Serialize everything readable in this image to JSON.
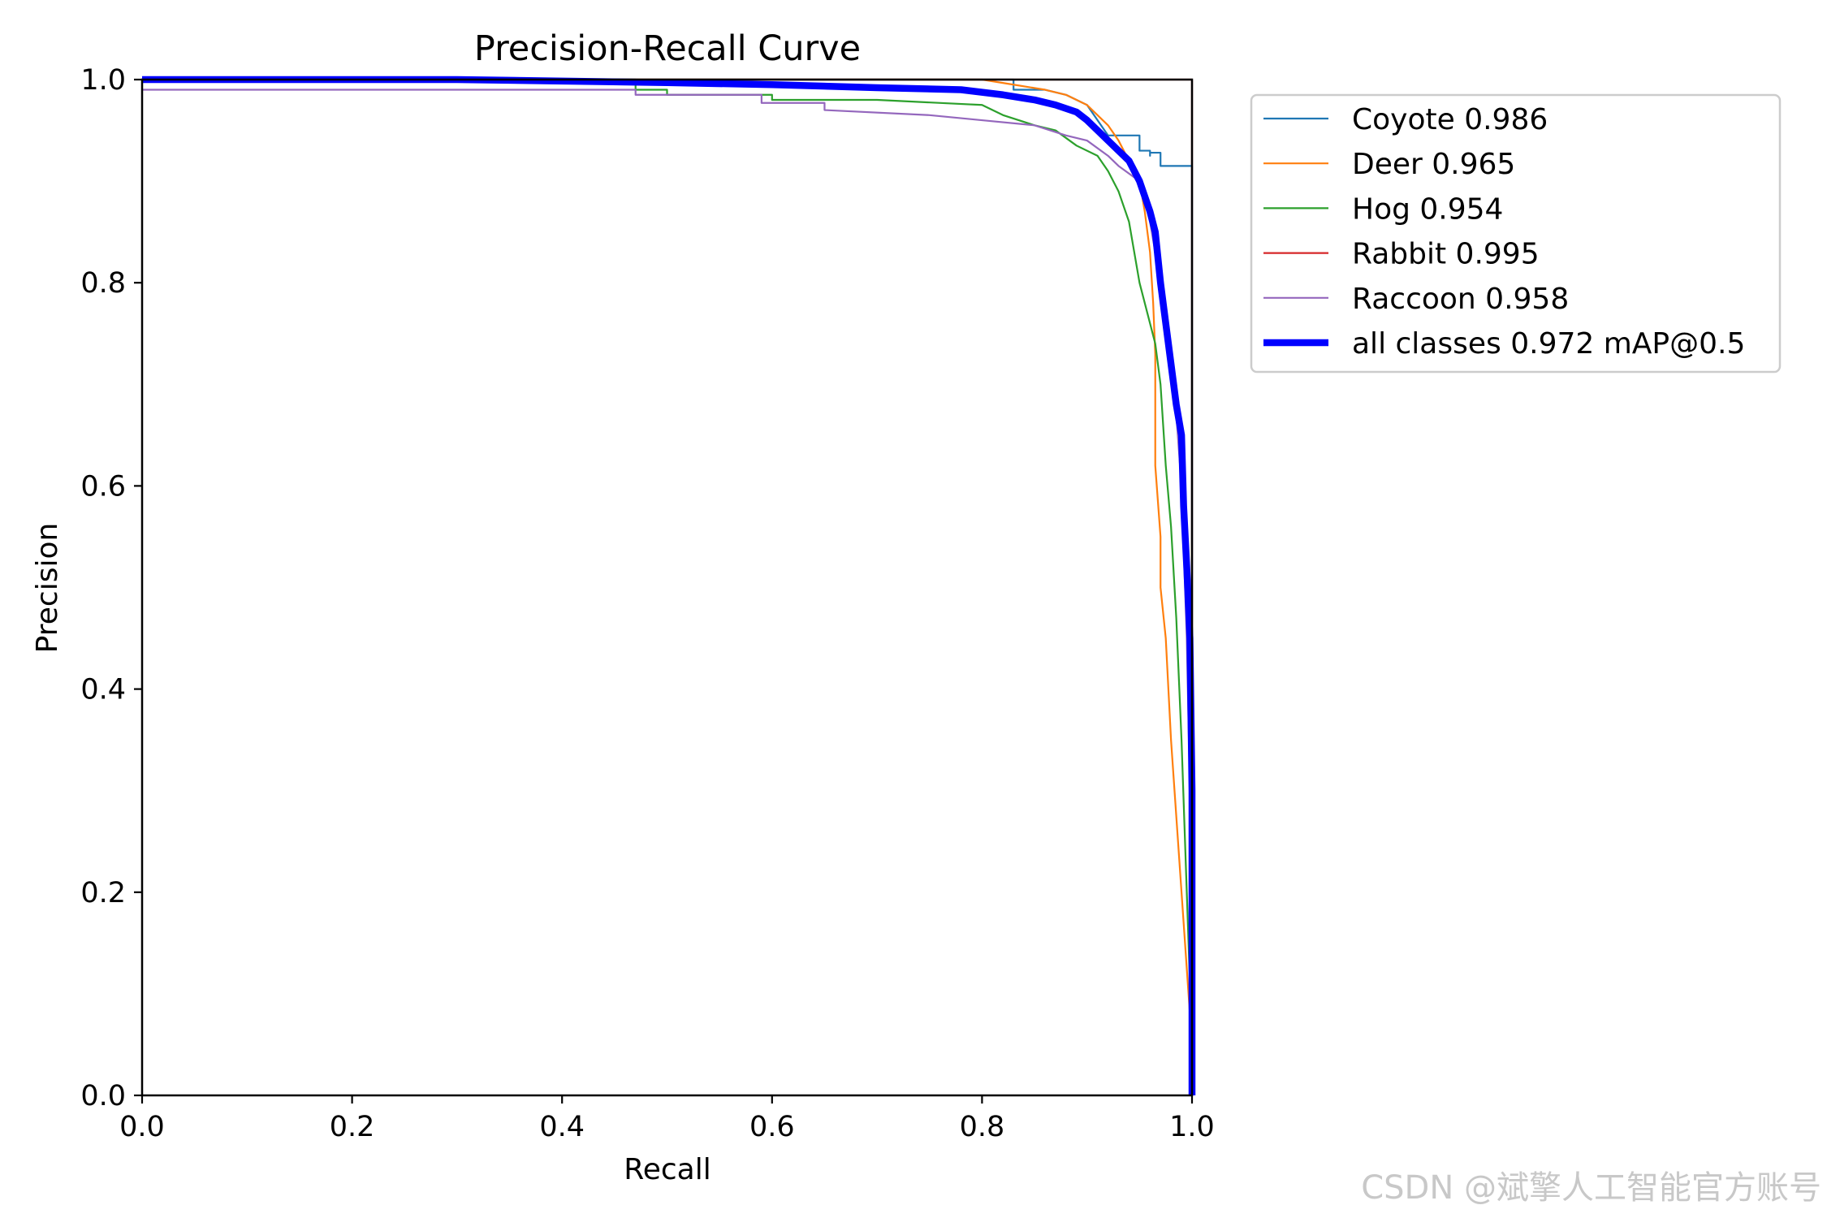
{
  "chart_data": {
    "type": "line",
    "title": "Precision-Recall Curve",
    "xlabel": "Recall",
    "ylabel": "Precision",
    "xlim": [
      0.0,
      1.0
    ],
    "ylim": [
      0.0,
      1.0
    ],
    "xticks": [
      "0.0",
      "0.2",
      "0.4",
      "0.6",
      "0.8",
      "1.0"
    ],
    "yticks": [
      "0.0",
      "0.2",
      "0.4",
      "0.6",
      "0.8",
      "1.0"
    ],
    "grid": false,
    "legend_position": "outside-right-top",
    "series": [
      {
        "name": "Coyote 0.986",
        "color": "#1f77b4",
        "width": "normal",
        "points": [
          [
            0.0,
            1.0
          ],
          [
            0.83,
            1.0
          ],
          [
            0.83,
            0.99
          ],
          [
            0.86,
            0.99
          ],
          [
            0.88,
            0.985
          ],
          [
            0.9,
            0.975
          ],
          [
            0.91,
            0.96
          ],
          [
            0.92,
            0.945
          ],
          [
            0.95,
            0.945
          ],
          [
            0.95,
            0.93
          ],
          [
            0.96,
            0.93
          ],
          [
            0.96,
            0.925
          ],
          [
            0.96,
            0.928
          ],
          [
            0.97,
            0.928
          ],
          [
            0.97,
            0.915
          ],
          [
            1.0,
            0.915
          ],
          [
            1.0,
            0.0
          ]
        ]
      },
      {
        "name": "Deer 0.965",
        "color": "#ff7f0e",
        "width": "normal",
        "points": [
          [
            0.0,
            1.0
          ],
          [
            0.8,
            1.0
          ],
          [
            0.83,
            0.995
          ],
          [
            0.86,
            0.99
          ],
          [
            0.88,
            0.985
          ],
          [
            0.9,
            0.975
          ],
          [
            0.91,
            0.965
          ],
          [
            0.92,
            0.955
          ],
          [
            0.93,
            0.94
          ],
          [
            0.94,
            0.92
          ],
          [
            0.95,
            0.9
          ],
          [
            0.955,
            0.87
          ],
          [
            0.96,
            0.83
          ],
          [
            0.963,
            0.78
          ],
          [
            0.965,
            0.73
          ],
          [
            0.965,
            0.62
          ],
          [
            0.97,
            0.55
          ],
          [
            0.97,
            0.5
          ],
          [
            0.975,
            0.45
          ],
          [
            0.98,
            0.35
          ],
          [
            1.0,
            0.05
          ],
          [
            1.0,
            0.0
          ]
        ]
      },
      {
        "name": "Hog 0.954",
        "color": "#2ca02c",
        "width": "normal",
        "points": [
          [
            0.0,
            1.0
          ],
          [
            0.47,
            1.0
          ],
          [
            0.47,
            0.99
          ],
          [
            0.5,
            0.99
          ],
          [
            0.5,
            0.985
          ],
          [
            0.6,
            0.985
          ],
          [
            0.6,
            0.98
          ],
          [
            0.7,
            0.98
          ],
          [
            0.8,
            0.975
          ],
          [
            0.82,
            0.965
          ],
          [
            0.85,
            0.955
          ],
          [
            0.87,
            0.95
          ],
          [
            0.89,
            0.935
          ],
          [
            0.91,
            0.925
          ],
          [
            0.92,
            0.91
          ],
          [
            0.93,
            0.89
          ],
          [
            0.94,
            0.86
          ],
          [
            0.945,
            0.83
          ],
          [
            0.95,
            0.8
          ],
          [
            0.96,
            0.76
          ],
          [
            0.965,
            0.74
          ],
          [
            0.97,
            0.7
          ],
          [
            0.975,
            0.62
          ],
          [
            0.98,
            0.56
          ],
          [
            0.985,
            0.47
          ],
          [
            0.99,
            0.35
          ],
          [
            0.995,
            0.2
          ],
          [
            1.0,
            0.05
          ],
          [
            1.0,
            0.0
          ]
        ]
      },
      {
        "name": "Rabbit 0.995",
        "color": "#d62728",
        "width": "normal",
        "points": [
          [
            0.0,
            1.0
          ],
          [
            1.0,
            1.0
          ],
          [
            1.0,
            0.0
          ]
        ]
      },
      {
        "name": "Raccoon 0.958",
        "color": "#9467bd",
        "width": "normal",
        "points": [
          [
            0.0,
            0.99
          ],
          [
            0.47,
            0.99
          ],
          [
            0.47,
            0.985
          ],
          [
            0.59,
            0.985
          ],
          [
            0.59,
            0.977
          ],
          [
            0.65,
            0.977
          ],
          [
            0.65,
            0.97
          ],
          [
            0.75,
            0.965
          ],
          [
            0.8,
            0.96
          ],
          [
            0.85,
            0.955
          ],
          [
            0.88,
            0.945
          ],
          [
            0.9,
            0.94
          ],
          [
            0.92,
            0.925
          ],
          [
            0.93,
            0.915
          ],
          [
            0.95,
            0.9
          ],
          [
            0.96,
            0.86
          ],
          [
            0.97,
            0.8
          ],
          [
            0.98,
            0.73
          ],
          [
            0.985,
            0.67
          ],
          [
            0.99,
            0.6
          ],
          [
            0.995,
            0.45
          ],
          [
            1.0,
            0.2
          ],
          [
            1.0,
            0.0
          ]
        ]
      },
      {
        "name": "all classes 0.972 mAP@0.5",
        "color": "#0000ff",
        "width": "thick",
        "points": [
          [
            0.0,
            1.0
          ],
          [
            0.3,
            1.0
          ],
          [
            0.5,
            0.997
          ],
          [
            0.6,
            0.995
          ],
          [
            0.7,
            0.992
          ],
          [
            0.78,
            0.99
          ],
          [
            0.82,
            0.985
          ],
          [
            0.85,
            0.98
          ],
          [
            0.87,
            0.975
          ],
          [
            0.89,
            0.968
          ],
          [
            0.9,
            0.96
          ],
          [
            0.91,
            0.95
          ],
          [
            0.92,
            0.94
          ],
          [
            0.93,
            0.93
          ],
          [
            0.94,
            0.92
          ],
          [
            0.95,
            0.9
          ],
          [
            0.96,
            0.87
          ],
          [
            0.965,
            0.85
          ],
          [
            0.97,
            0.8
          ],
          [
            0.975,
            0.76
          ],
          [
            0.98,
            0.72
          ],
          [
            0.985,
            0.68
          ],
          [
            0.99,
            0.65
          ],
          [
            0.992,
            0.58
          ],
          [
            0.995,
            0.52
          ],
          [
            0.998,
            0.45
          ],
          [
            1.0,
            0.3
          ],
          [
            1.0,
            0.0
          ]
        ]
      }
    ]
  },
  "watermark": "CSDN @斌擎人工智能官方账号"
}
